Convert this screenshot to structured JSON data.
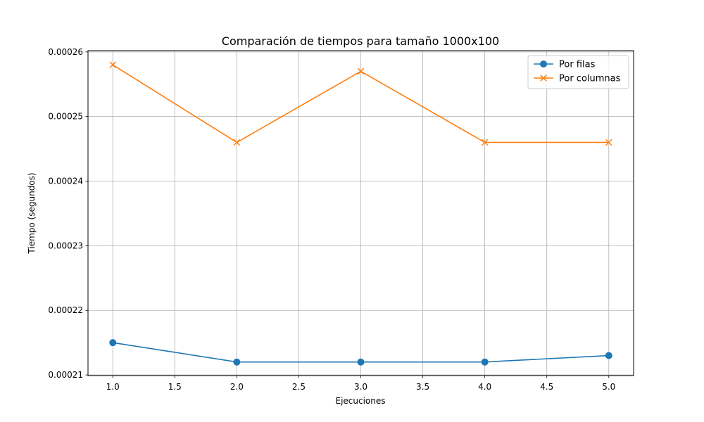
{
  "chart_data": {
    "type": "line",
    "title": "Comparación de tiempos para tamaño 1000x100",
    "xlabel": "Ejecuciones",
    "ylabel": "Tiempo (segundos)",
    "xlim": [
      0.8,
      5.2
    ],
    "ylim": [
      0.0002099,
      0.0002602
    ],
    "xticks": [
      1.0,
      1.5,
      2.0,
      2.5,
      3.0,
      3.5,
      4.0,
      4.5,
      5.0
    ],
    "xtick_labels": [
      "1.0",
      "1.5",
      "2.0",
      "2.5",
      "3.0",
      "3.5",
      "4.0",
      "4.5",
      "5.0"
    ],
    "yticks": [
      0.00021,
      0.00022,
      0.00023,
      0.00024,
      0.00025,
      0.00026
    ],
    "ytick_labels": [
      "0.00021",
      "0.00022",
      "0.00023",
      "0.00024",
      "0.00025",
      "0.00026"
    ],
    "grid": true,
    "legend_position": "top-right",
    "x": [
      1,
      2,
      3,
      4,
      5
    ],
    "series": [
      {
        "name": "Por filas",
        "values": [
          0.000215,
          0.000212,
          0.000212,
          0.000212,
          0.000213
        ],
        "color": "#1f77b4",
        "marker": "circle"
      },
      {
        "name": "Por columnas",
        "values": [
          0.000258,
          0.000246,
          0.000257,
          0.000246,
          0.000246
        ],
        "color": "#ff7f0e",
        "marker": "x"
      }
    ]
  }
}
